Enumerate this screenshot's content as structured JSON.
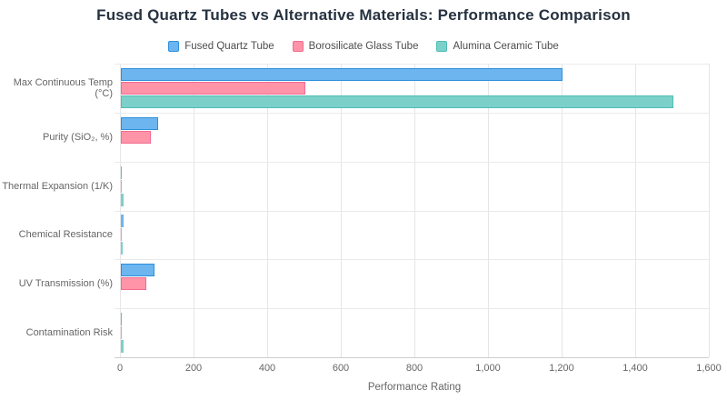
{
  "title": "Fused Quartz Tubes vs Alternative Materials: Performance Comparison",
  "chart_data": {
    "type": "bar",
    "orientation": "horizontal",
    "title": "Fused Quartz Tubes vs Alternative Materials: Performance Comparison",
    "xlabel": "Performance Rating",
    "ylabel": "",
    "xlim": [
      0,
      1600
    ],
    "x_ticks": [
      "0",
      "200",
      "400",
      "600",
      "800",
      "1,000",
      "1,200",
      "1,400",
      "1,600"
    ],
    "x_tick_values": [
      0,
      200,
      400,
      600,
      800,
      1000,
      1200,
      1400,
      1600
    ],
    "grid": true,
    "legend_position": "top",
    "categories": [
      "Max Continuous Temp (°C)",
      "Purity (SiO₂, %)",
      "Thermal Expansion (1/K)",
      "Chemical Resistance",
      "UV Transmission (%)",
      "Contamination Risk"
    ],
    "series": [
      {
        "name": "Fused Quartz Tube",
        "fill_color": "#6cb5ef",
        "border_color": "#2e90dc",
        "values": [
          1200,
          99.99,
          0.55,
          7,
          90,
          1
        ]
      },
      {
        "name": "Borosilicate Glass Tube",
        "fill_color": "#ff93a8",
        "border_color": "#f26d90",
        "values": [
          500,
          81,
          3.3,
          3,
          70,
          3
        ]
      },
      {
        "name": "Alumina Ceramic Tube",
        "fill_color": "#7bd1c9",
        "border_color": "#4fbeb4",
        "values": [
          1500,
          0,
          8.1,
          6,
          0,
          7
        ]
      }
    ]
  }
}
